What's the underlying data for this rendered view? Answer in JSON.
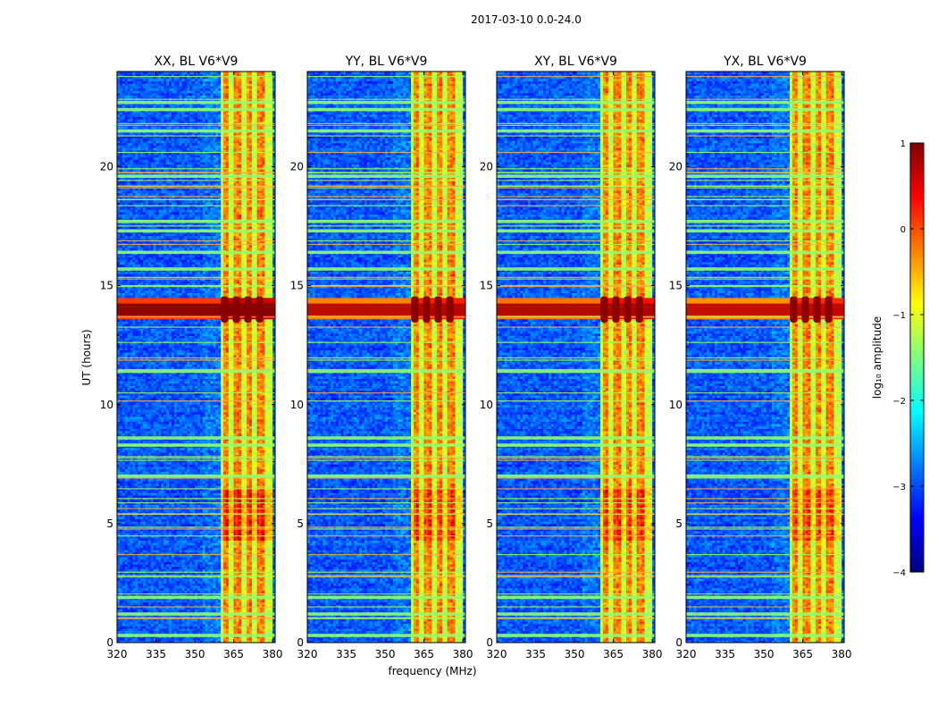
{
  "chart_data": {
    "type": "heatmap",
    "suptitle": "2017-03-10 0.0-24.0",
    "xlabel": "frequency (MHz)",
    "ylabel": "UT (hours)",
    "xlim": [
      320,
      381
    ],
    "ylim": [
      0,
      24
    ],
    "xticks": [
      320,
      335,
      350,
      365,
      380
    ],
    "yticks": [
      0,
      5,
      10,
      15,
      20
    ],
    "panels": [
      {
        "title": "XX, BL V6*V9",
        "flare_strength": 1.0
      },
      {
        "title": "YY, BL V6*V9",
        "flare_strength": 0.75
      },
      {
        "title": "XY, BL V6*V9",
        "flare_strength": 0.8
      },
      {
        "title": "YX, BL V6*V9",
        "flare_strength": 0.7
      }
    ],
    "rfi_band_mhz": [
      360,
      379
    ],
    "rfi_channel_centers_mhz": [
      361.5,
      366,
      370.5,
      375
    ],
    "flare_hours": [
      13.6,
      14.4
    ],
    "colorbar": {
      "label": "log₁₀ amplitude",
      "vmin": -4,
      "vmax": 1,
      "ticks": [
        "1",
        "0",
        "−1",
        "−2",
        "−3",
        "−4"
      ],
      "colormap": [
        "#00007f",
        "#0000ff",
        "#007fff",
        "#00ffff",
        "#7fff7f",
        "#ffff00",
        "#ff7f00",
        "#ff0000",
        "#7f0000"
      ]
    }
  }
}
